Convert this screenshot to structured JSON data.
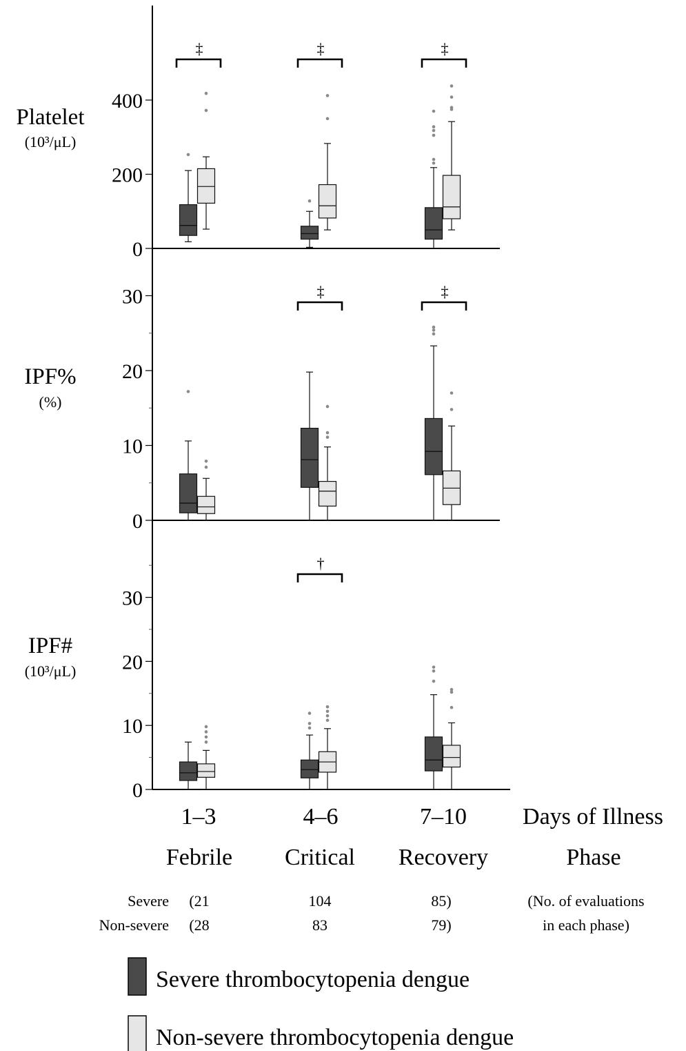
{
  "colors": {
    "severe": "#4a4a4a",
    "nonsevere": "#e6e6e6",
    "outlier": "#8a8a8a"
  },
  "x_axis": {
    "days_label": "Days of Illness",
    "phase_label": "Phase",
    "groups": [
      {
        "days": "1–3",
        "phase": "Febrile"
      },
      {
        "days": "4–6",
        "phase": "Critical"
      },
      {
        "days": "7–10",
        "phase": "Recovery"
      }
    ]
  },
  "counts": {
    "rows": [
      {
        "label": "Severe",
        "values": [
          "(21",
          "104",
          "85)"
        ]
      },
      {
        "label": "Non-severe",
        "values": [
          "(28",
          "83",
          "79)"
        ]
      }
    ],
    "note_line1": "(No. of evaluations",
    "note_line2": "in each phase)"
  },
  "legend": [
    {
      "label": "Severe thrombocytopenia dengue",
      "series": "severe"
    },
    {
      "label": "Non-severe thrombocytopenia dengue",
      "series": "nonsevere"
    }
  ],
  "chart_data": [
    {
      "type": "box",
      "ylabel": "Platelet",
      "yunit": "(10³/μL)",
      "ylim": [
        0,
        560
      ],
      "yticks": [
        0,
        200,
        400
      ],
      "minor_ticks": [],
      "categories": [
        "1–3",
        "4–6",
        "7–10"
      ],
      "series": [
        {
          "name": "Severe thrombocytopenia dengue",
          "key": "severe",
          "boxes": [
            {
              "min": 18,
              "q1": 35,
              "median": 62,
              "q3": 118,
              "max": 210,
              "outliers": [
                253
              ]
            },
            {
              "min": 3,
              "q1": 25,
              "median": 40,
              "q3": 60,
              "max": 100,
              "outliers": [
                128
              ]
            },
            {
              "min": 0,
              "q1": 25,
              "median": 50,
              "q3": 110,
              "max": 218,
              "outliers": [
                230,
                240,
                305,
                318,
                328,
                370
              ]
            }
          ]
        },
        {
          "name": "Non-severe thrombocytopenia dengue",
          "key": "nonsevere",
          "boxes": [
            {
              "min": 52,
              "q1": 122,
              "median": 167,
              "q3": 215,
              "max": 247,
              "outliers": [
                372,
                418
              ]
            },
            {
              "min": 50,
              "q1": 82,
              "median": 115,
              "q3": 172,
              "max": 283,
              "outliers": [
                350,
                412
              ]
            },
            {
              "min": 50,
              "q1": 80,
              "median": 112,
              "q3": 197,
              "max": 342,
              "outliers": [
                375,
                380,
                408,
                438
              ]
            }
          ]
        }
      ],
      "significance": [
        {
          "category": 0,
          "symbol": "‡"
        },
        {
          "category": 1,
          "symbol": "‡"
        },
        {
          "category": 2,
          "symbol": "‡"
        }
      ]
    },
    {
      "type": "box",
      "ylabel": "IPF%",
      "yunit": "(%)",
      "ylim": [
        0,
        34
      ],
      "yticks": [
        0,
        10,
        20,
        30
      ],
      "minor_ticks": [
        5,
        15,
        25
      ],
      "categories": [
        "1–3",
        "4–6",
        "7–10"
      ],
      "series": [
        {
          "name": "Severe thrombocytopenia dengue",
          "key": "severe",
          "boxes": [
            {
              "min": 0,
              "q1": 1.0,
              "median": 2.3,
              "q3": 6.2,
              "max": 10.6,
              "outliers": [
                17.2
              ]
            },
            {
              "min": 0,
              "q1": 4.4,
              "median": 8.1,
              "q3": 12.3,
              "max": 19.8,
              "outliers": []
            },
            {
              "min": 0,
              "q1": 6.1,
              "median": 9.2,
              "q3": 13.6,
              "max": 23.3,
              "outliers": [
                24.9,
                25.4,
                25.8
              ]
            }
          ]
        },
        {
          "name": "Non-severe thrombocytopenia dengue",
          "key": "nonsevere",
          "boxes": [
            {
              "min": 0,
              "q1": 0.9,
              "median": 1.8,
              "q3": 3.2,
              "max": 5.6,
              "outliers": [
                7.1,
                7.9
              ]
            },
            {
              "min": 0,
              "q1": 1.9,
              "median": 3.9,
              "q3": 5.2,
              "max": 9.8,
              "outliers": [
                11.1,
                11.7,
                15.2
              ]
            },
            {
              "min": 0,
              "q1": 2.1,
              "median": 4.3,
              "q3": 6.6,
              "max": 12.6,
              "outliers": [
                14.8,
                17.0
              ]
            }
          ]
        }
      ],
      "significance": [
        {
          "category": 1,
          "symbol": "‡"
        },
        {
          "category": 2,
          "symbol": "‡"
        }
      ]
    },
    {
      "type": "box",
      "ylabel": "IPF#",
      "yunit": "(10³/μL)",
      "ylim": [
        0,
        40
      ],
      "yticks": [
        0,
        10,
        20,
        30
      ],
      "minor_ticks": [
        5,
        15,
        25,
        35
      ],
      "categories": [
        "1–3",
        "4–6",
        "7–10"
      ],
      "series": [
        {
          "name": "Severe thrombocytopenia dengue",
          "key": "severe",
          "boxes": [
            {
              "min": 0,
              "q1": 1.4,
              "median": 2.6,
              "q3": 4.3,
              "max": 7.4,
              "outliers": []
            },
            {
              "min": 0,
              "q1": 1.8,
              "median": 3.1,
              "q3": 4.6,
              "max": 8.5,
              "outliers": [
                9.6,
                10.3,
                11.9
              ]
            },
            {
              "min": 0,
              "q1": 2.9,
              "median": 4.6,
              "q3": 8.2,
              "max": 14.8,
              "outliers": [
                16.9,
                18.5,
                19.1
              ]
            }
          ]
        },
        {
          "name": "Non-severe thrombocytopenia dengue",
          "key": "nonsevere",
          "boxes": [
            {
              "min": 0,
              "q1": 1.9,
              "median": 2.8,
              "q3": 4.0,
              "max": 6.1,
              "outliers": [
                7.4,
                8.2,
                9.0,
                9.8
              ]
            },
            {
              "min": 0,
              "q1": 2.7,
              "median": 4.3,
              "q3": 5.9,
              "max": 9.5,
              "outliers": [
                10.8,
                11.5,
                12.2,
                12.9
              ]
            },
            {
              "min": 0,
              "q1": 3.5,
              "median": 5.0,
              "q3": 6.9,
              "max": 10.4,
              "outliers": [
                12.8,
                15.2,
                15.6
              ]
            }
          ]
        }
      ],
      "significance": [
        {
          "category": 1,
          "symbol": "†"
        }
      ]
    }
  ]
}
